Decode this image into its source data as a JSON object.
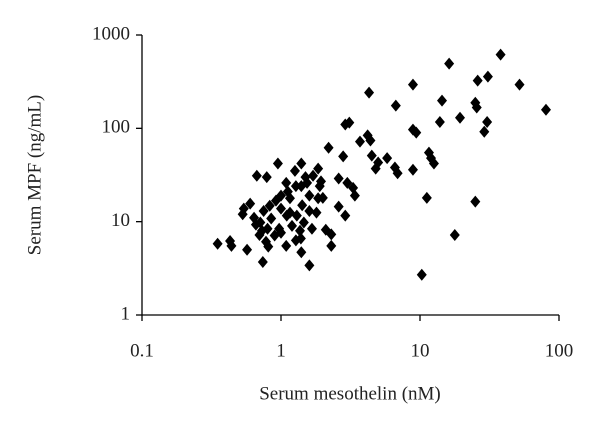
{
  "chart_data": {
    "type": "scatter",
    "x_label": "Serum mesothelin (nM)",
    "y_label": "Serum MPF (ng/mL)",
    "xscale": "log",
    "yscale": "log",
    "xlim": [
      0.1,
      100
    ],
    "ylim": [
      1,
      1000
    ],
    "xticks": [
      0.1,
      1,
      10,
      100
    ],
    "yticks": [
      1,
      10,
      100,
      1000
    ],
    "grid": false,
    "color": "#000000",
    "marker": "diamond",
    "x": [
      38,
      16.2,
      30.8,
      26,
      8.9,
      52,
      4.3,
      14.4,
      25,
      25.6,
      6.7,
      80.6,
      3.1,
      2.9,
      13.9,
      30.4,
      19.4,
      8.9,
      9.4,
      29,
      4.2,
      4.4,
      3.7,
      11.6,
      12,
      12.6,
      5.8,
      4.5,
      5,
      6.6,
      6.9,
      8.9,
      4.8,
      2.8,
      2.2,
      1.85,
      1.7,
      1.4,
      2.6,
      3.4,
      3.3,
      3,
      2.9,
      2.3,
      2.1,
      2.3,
      2,
      1.9,
      1.6,
      1.4,
      11.2,
      25,
      17.8,
      10.3,
      1.6,
      1.4,
      0.35,
      0.43,
      0.44,
      0.57,
      0.74,
      0.53,
      0.6,
      0.67,
      0.79,
      0.95,
      0.66,
      0.73,
      0.78,
      0.81,
      0.9,
      1,
      1.2,
      1.37,
      1.28,
      1.1,
      1,
      0.92,
      1,
      1.12,
      1.28,
      1.54,
      1.42,
      1.6,
      0.85,
      0.75,
      0.64,
      0.71,
      0.83,
      1.16,
      1.3,
      1.46,
      1.8,
      1.85,
      1.16,
      0.97,
      0.8,
      0.7,
      1.09,
      1.39,
      1.67,
      0.54,
      1.09,
      1.26,
      1.5,
      2.6,
      1.94
    ],
    "values": [
      616,
      493,
      358,
      324,
      294,
      294,
      241,
      198,
      188,
      167,
      175,
      158,
      115,
      110,
      117,
      117,
      130,
      97,
      90,
      92,
      84,
      74,
      72,
      55,
      48,
      42,
      48,
      51,
      43,
      38,
      33,
      36,
      37,
      50,
      62,
      37,
      31,
      42,
      29,
      19,
      23,
      26,
      11.6,
      7.3,
      8.2,
      5.5,
      18,
      24,
      19,
      24,
      18,
      16.4,
      7.2,
      2.7,
      3.4,
      4.7,
      5.8,
      6.2,
      5.5,
      5,
      3.7,
      12,
      15.6,
      31,
      30,
      42,
      9.3,
      8,
      6.1,
      5.4,
      7.1,
      7.6,
      9,
      8,
      6.3,
      11.6,
      13.8,
      16.8,
      19,
      21,
      24,
      26,
      15,
      13,
      10.8,
      13,
      11,
      9.8,
      14.8,
      17.8,
      11.6,
      9.8,
      12.5,
      17.8,
      12.5,
      8.4,
      8.4,
      7.2,
      5.5,
      6.6,
      8.4,
      13.8,
      26,
      35,
      30,
      14.5,
      27
    ]
  }
}
